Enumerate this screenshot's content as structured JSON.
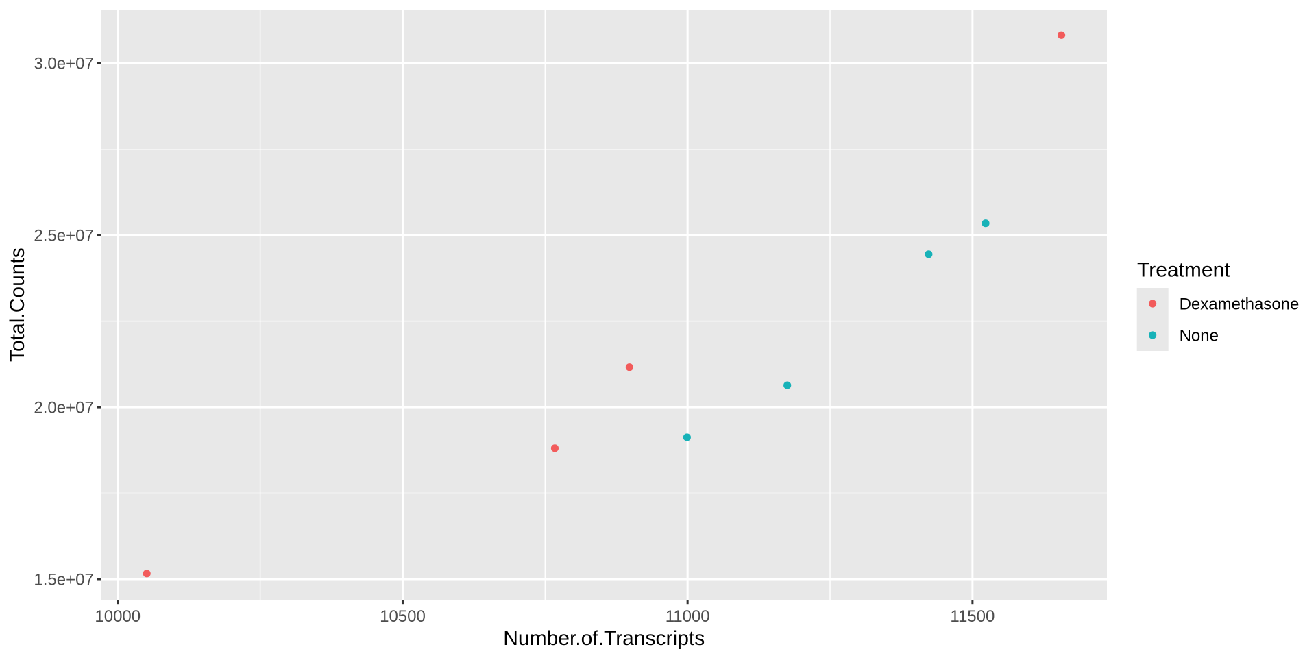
{
  "chart_data": {
    "type": "scatter",
    "title": "",
    "xlabel": "Number.of.Transcripts",
    "ylabel": "Total.Counts",
    "x_ticks": [
      {
        "value": 10000,
        "label": "10000"
      },
      {
        "value": 10500,
        "label": "10500"
      },
      {
        "value": 11000,
        "label": "11000"
      },
      {
        "value": 11500,
        "label": "11500"
      }
    ],
    "y_ticks": [
      {
        "value": 15000000,
        "label": "1.5e+07"
      },
      {
        "value": 20000000,
        "label": "2.0e+07"
      },
      {
        "value": 25000000,
        "label": "2.5e+07"
      },
      {
        "value": 30000000,
        "label": "3.0e+07"
      }
    ],
    "x_minor_ticks": [
      10250,
      10750,
      11250
    ],
    "y_minor_ticks": [
      17500000,
      22500000,
      27500000
    ],
    "xlim": [
      9970.8,
      11735.9
    ],
    "ylim": [
      14398167,
      31560382
    ],
    "grid": "white major and minor gridlines on grey panel",
    "legend_position": "right",
    "series": [
      {
        "name": "Dexamethasone",
        "color": "#F25B5B",
        "points": [
          {
            "x": 10051,
            "y": 15163415
          },
          {
            "x": 10767,
            "y": 18809481
          },
          {
            "x": 10898,
            "y": 21164133
          },
          {
            "x": 11656,
            "y": 30818215
          }
        ]
      },
      {
        "name": "None",
        "color": "#17B2B8",
        "points": [
          {
            "x": 10999,
            "y": 19126151
          },
          {
            "x": 11175,
            "y": 20637971
          },
          {
            "x": 11423,
            "y": 24448408
          },
          {
            "x": 11523,
            "y": 25348649
          }
        ]
      }
    ]
  },
  "legend": {
    "title": "Treatment"
  },
  "colors": {
    "background": "#FFFFFF",
    "panel": "#E8E8E8",
    "legend_key": "#E8E8E8",
    "gridline": "#FFFFFF",
    "tick_mark": "#333333",
    "tick_label": "#4D4D4D",
    "axis_title": "#000000",
    "legend_text": "#000000"
  }
}
